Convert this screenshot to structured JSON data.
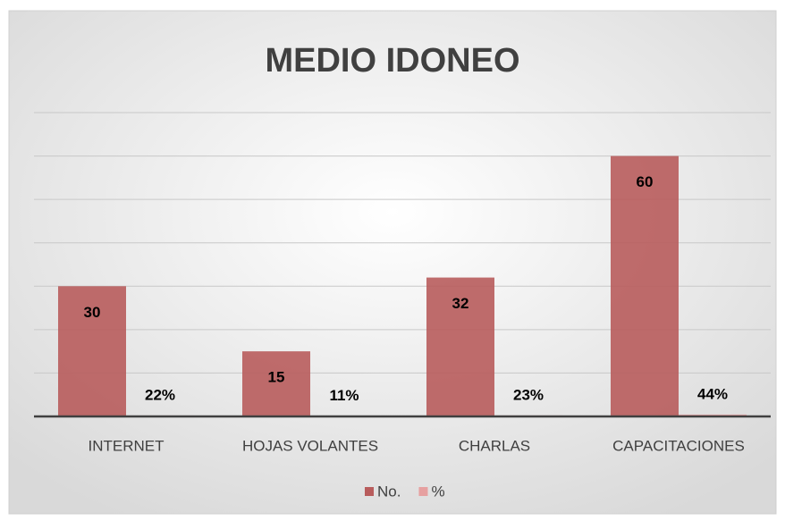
{
  "chart_data": {
    "type": "bar",
    "title": "MEDIO IDONEO",
    "categories": [
      "INTERNET",
      "HOJAS VOLANTES",
      "CHARLAS",
      "CAPACITACIONES"
    ],
    "series": [
      {
        "name": "No.",
        "color": "#b85c5c",
        "values": [
          30,
          15,
          32,
          60
        ]
      },
      {
        "name": "%",
        "color": "#e6a0a0",
        "values": [
          0.22,
          0.11,
          0.23,
          0.44
        ],
        "value_labels": [
          "22%",
          "11%",
          "23%",
          "44%"
        ]
      }
    ],
    "ylim": [
      0,
      70
    ],
    "yticks": [
      0,
      10,
      20,
      30,
      40,
      50,
      60,
      70
    ],
    "grid": true,
    "legend": "bottom"
  }
}
